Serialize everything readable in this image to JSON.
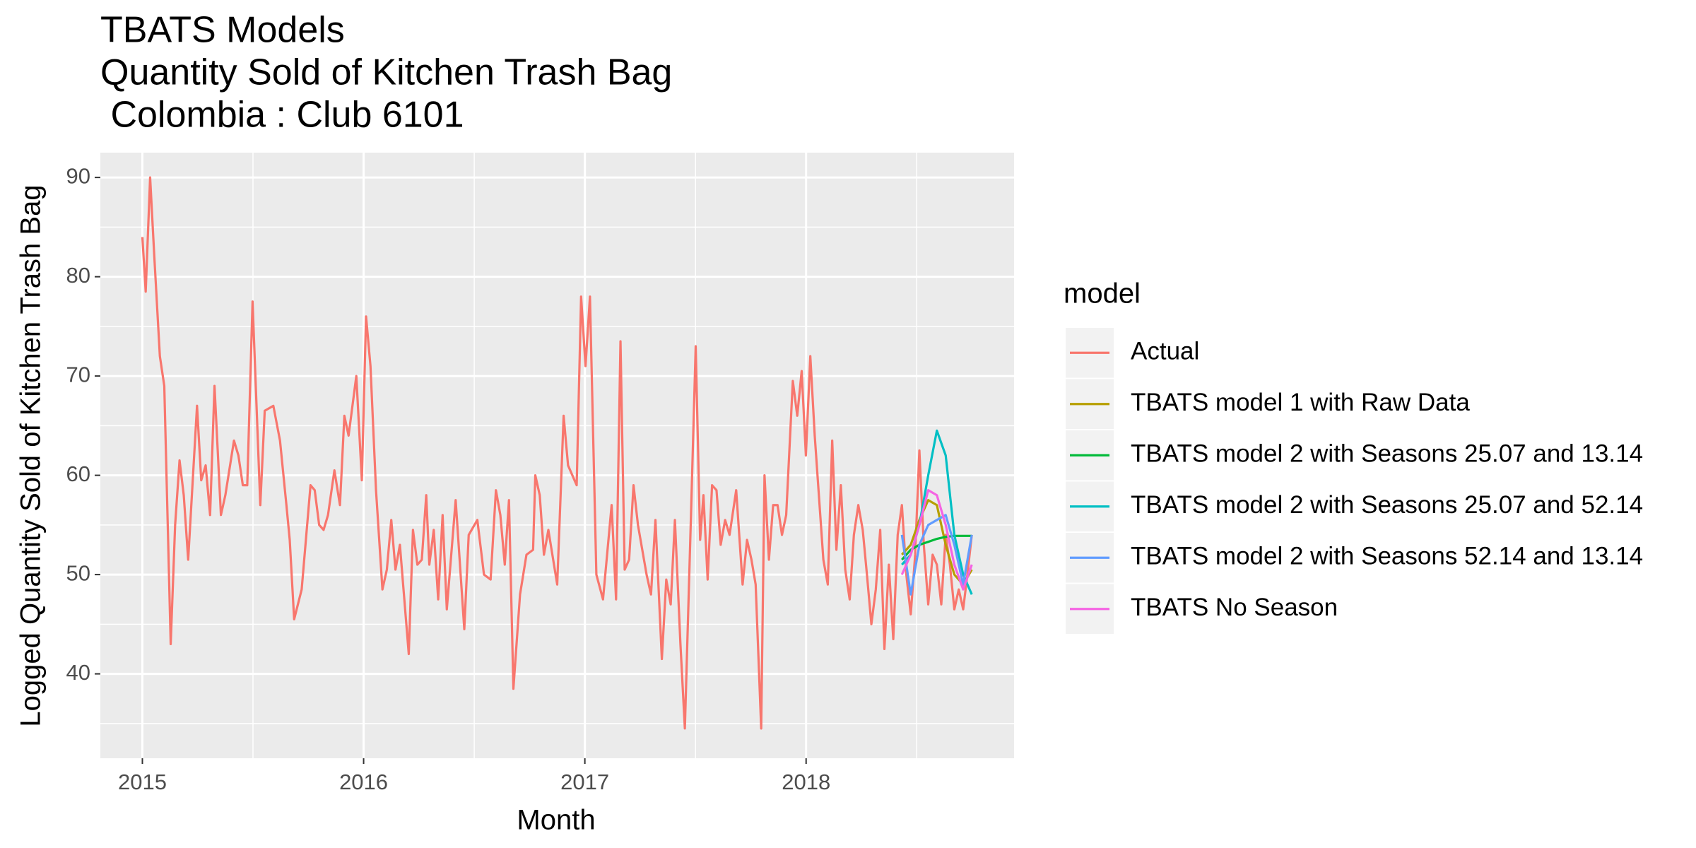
{
  "chart_data": {
    "type": "line",
    "title": [
      "TBATS Models",
      "Quantity Sold of Kitchen Trash Bag",
      " Colombia : Club 6101"
    ],
    "x_label": "Month",
    "y_label": "Logged Quantity Sold of Kitchen Trash Bag",
    "legend_title": "model",
    "legend": "right",
    "grid": true,
    "xlim": [
      2014.81,
      2018.94
    ],
    "ylim": [
      31.5,
      92.5
    ],
    "xticks": [
      2015,
      2016,
      2017,
      2018
    ],
    "yticks": [
      40,
      50,
      60,
      70,
      80,
      90
    ],
    "series": [
      {
        "name": "Actual",
        "color": "#F8766D",
        "x": [
          2015.0,
          2015.015,
          2015.035,
          2015.054,
          2015.079,
          2015.099,
          2015.128,
          2015.148,
          2015.168,
          2015.187,
          2015.207,
          2015.247,
          2015.266,
          2015.286,
          2015.306,
          2015.326,
          2015.355,
          2015.375,
          2015.414,
          2015.434,
          2015.454,
          2015.474,
          2015.498,
          2015.533,
          2015.553,
          2015.592,
          2015.622,
          2015.651,
          2015.666,
          2015.686,
          2015.72,
          2015.76,
          2015.779,
          2015.799,
          2015.819,
          2015.839,
          2015.868,
          2015.893,
          2015.913,
          2015.932,
          2015.967,
          2015.992,
          2016.011,
          2016.031,
          2016.056,
          2016.085,
          2016.105,
          2016.125,
          2016.144,
          2016.164,
          2016.204,
          2016.223,
          2016.243,
          2016.263,
          2016.283,
          2016.297,
          2016.317,
          2016.337,
          2016.357,
          2016.376,
          2016.416,
          2016.455,
          2016.475,
          2016.514,
          2016.544,
          2016.574,
          2016.598,
          2016.618,
          2016.638,
          2016.657,
          2016.677,
          2016.707,
          2016.736,
          2016.766,
          2016.776,
          2016.796,
          2016.815,
          2016.835,
          2016.875,
          2016.904,
          2016.924,
          2016.963,
          2016.983,
          2017.003,
          2017.023,
          2017.052,
          2017.082,
          2017.121,
          2017.141,
          2017.161,
          2017.18,
          2017.2,
          2017.22,
          2017.24,
          2017.279,
          2017.299,
          2017.319,
          2017.348,
          2017.368,
          2017.388,
          2017.407,
          2017.432,
          2017.452,
          2017.481,
          2017.501,
          2017.521,
          2017.536,
          2017.555,
          2017.575,
          2017.595,
          2017.614,
          2017.634,
          2017.654,
          2017.684,
          2017.713,
          2017.733,
          2017.753,
          2017.772,
          2017.797,
          2017.812,
          2017.832,
          2017.851,
          2017.871,
          2017.891,
          2017.91,
          2017.94,
          2017.96,
          2017.98,
          2017.999,
          2018.019,
          2018.039,
          2018.078,
          2018.098,
          2018.118,
          2018.137,
          2018.157,
          2018.177,
          2018.197,
          2018.216,
          2018.236,
          2018.256,
          2018.275,
          2018.295,
          2018.315,
          2018.335,
          2018.354,
          2018.374,
          2018.394,
          2018.414,
          2018.433,
          2018.453,
          2018.473,
          2018.493,
          2018.512,
          2018.532,
          2018.552,
          2018.572,
          2018.591,
          2018.611,
          2018.631,
          2018.65,
          2018.67,
          2018.69,
          2018.71,
          2018.729,
          2018.749
        ],
        "values": [
          84,
          78.5,
          90,
          82,
          72,
          69,
          43,
          55,
          61.5,
          58,
          51.5,
          67,
          59.5,
          61,
          56,
          69,
          56,
          58,
          63.5,
          62,
          59,
          59,
          77.5,
          57,
          66.5,
          67,
          63.5,
          57,
          53.5,
          45.5,
          48.5,
          59,
          58.5,
          55,
          54.5,
          56,
          60.5,
          57,
          66,
          64,
          70,
          59.5,
          76,
          71,
          58.5,
          48.5,
          50.5,
          55.5,
          50.5,
          53,
          42,
          54.5,
          51,
          51.5,
          58,
          51,
          54.5,
          47.5,
          56,
          46.5,
          57.5,
          44.5,
          54,
          55.5,
          50,
          49.5,
          58.5,
          56,
          51,
          57.5,
          38.5,
          48,
          52,
          52.5,
          60,
          58,
          52,
          54.5,
          49,
          66,
          61,
          59,
          78,
          71,
          78,
          50,
          47.5,
          57,
          47.5,
          73.5,
          50.5,
          51.5,
          59,
          55,
          50,
          48,
          55.5,
          41.5,
          49.5,
          47,
          55.5,
          43,
          34.5,
          57,
          73,
          53.5,
          58,
          49.5,
          59,
          58.5,
          53,
          55.5,
          54,
          58.5,
          49,
          53.5,
          51.5,
          49,
          34.5,
          60,
          51.5,
          57,
          57,
          54,
          56,
          69.5,
          66,
          70.5,
          62,
          72,
          64,
          51.5,
          49,
          63.5,
          52.5,
          59,
          50.5,
          47.5,
          54,
          57,
          54.5,
          50,
          45,
          48.5,
          54.5,
          42.5,
          51,
          43.5,
          54,
          57,
          50,
          46,
          52,
          62.5,
          53,
          47,
          52,
          51,
          47,
          54,
          51,
          46.5,
          48.5,
          46.5,
          50,
          54
        ]
      },
      {
        "name": "TBATS model 1 with Raw Data",
        "color": "#B79F00",
        "x": [
          2018.433,
          2018.473,
          2018.512,
          2018.552,
          2018.591,
          2018.631,
          2018.67,
          2018.71,
          2018.749
        ],
        "values": [
          52,
          53,
          55.5,
          57.5,
          57,
          53,
          50,
          49,
          50.5
        ]
      },
      {
        "name": "TBATS model 2 with Seasons 25.07 and 13.14",
        "color": "#00BA38",
        "x": [
          2018.433,
          2018.473,
          2018.512,
          2018.552,
          2018.591,
          2018.631,
          2018.67,
          2018.71,
          2018.749
        ],
        "values": [
          51.5,
          52.5,
          53,
          53.3,
          53.6,
          53.8,
          53.9,
          53.9,
          53.9
        ]
      },
      {
        "name": "TBATS model 2 with Seasons 25.07 and 52.14",
        "color": "#00BFC4",
        "x": [
          2018.433,
          2018.473,
          2018.512,
          2018.552,
          2018.591,
          2018.631,
          2018.67,
          2018.71,
          2018.749
        ],
        "values": [
          51,
          52,
          55,
          60,
          64.5,
          62,
          54,
          50,
          48
        ]
      },
      {
        "name": "TBATS model 2 with Seasons 52.14 and 13.14",
        "color": "#619CFF",
        "x": [
          2018.433,
          2018.473,
          2018.512,
          2018.552,
          2018.591,
          2018.631,
          2018.67,
          2018.71,
          2018.749
        ],
        "values": [
          54,
          48,
          53,
          55,
          55.5,
          56,
          53,
          49,
          54
        ]
      },
      {
        "name": "TBATS No Season",
        "color": "#F564E3",
        "x": [
          2018.433,
          2018.473,
          2018.512,
          2018.552,
          2018.591,
          2018.631,
          2018.67,
          2018.71,
          2018.749
        ],
        "values": [
          50,
          52,
          55,
          58.5,
          58,
          55,
          51,
          48.5,
          51
        ]
      }
    ]
  }
}
